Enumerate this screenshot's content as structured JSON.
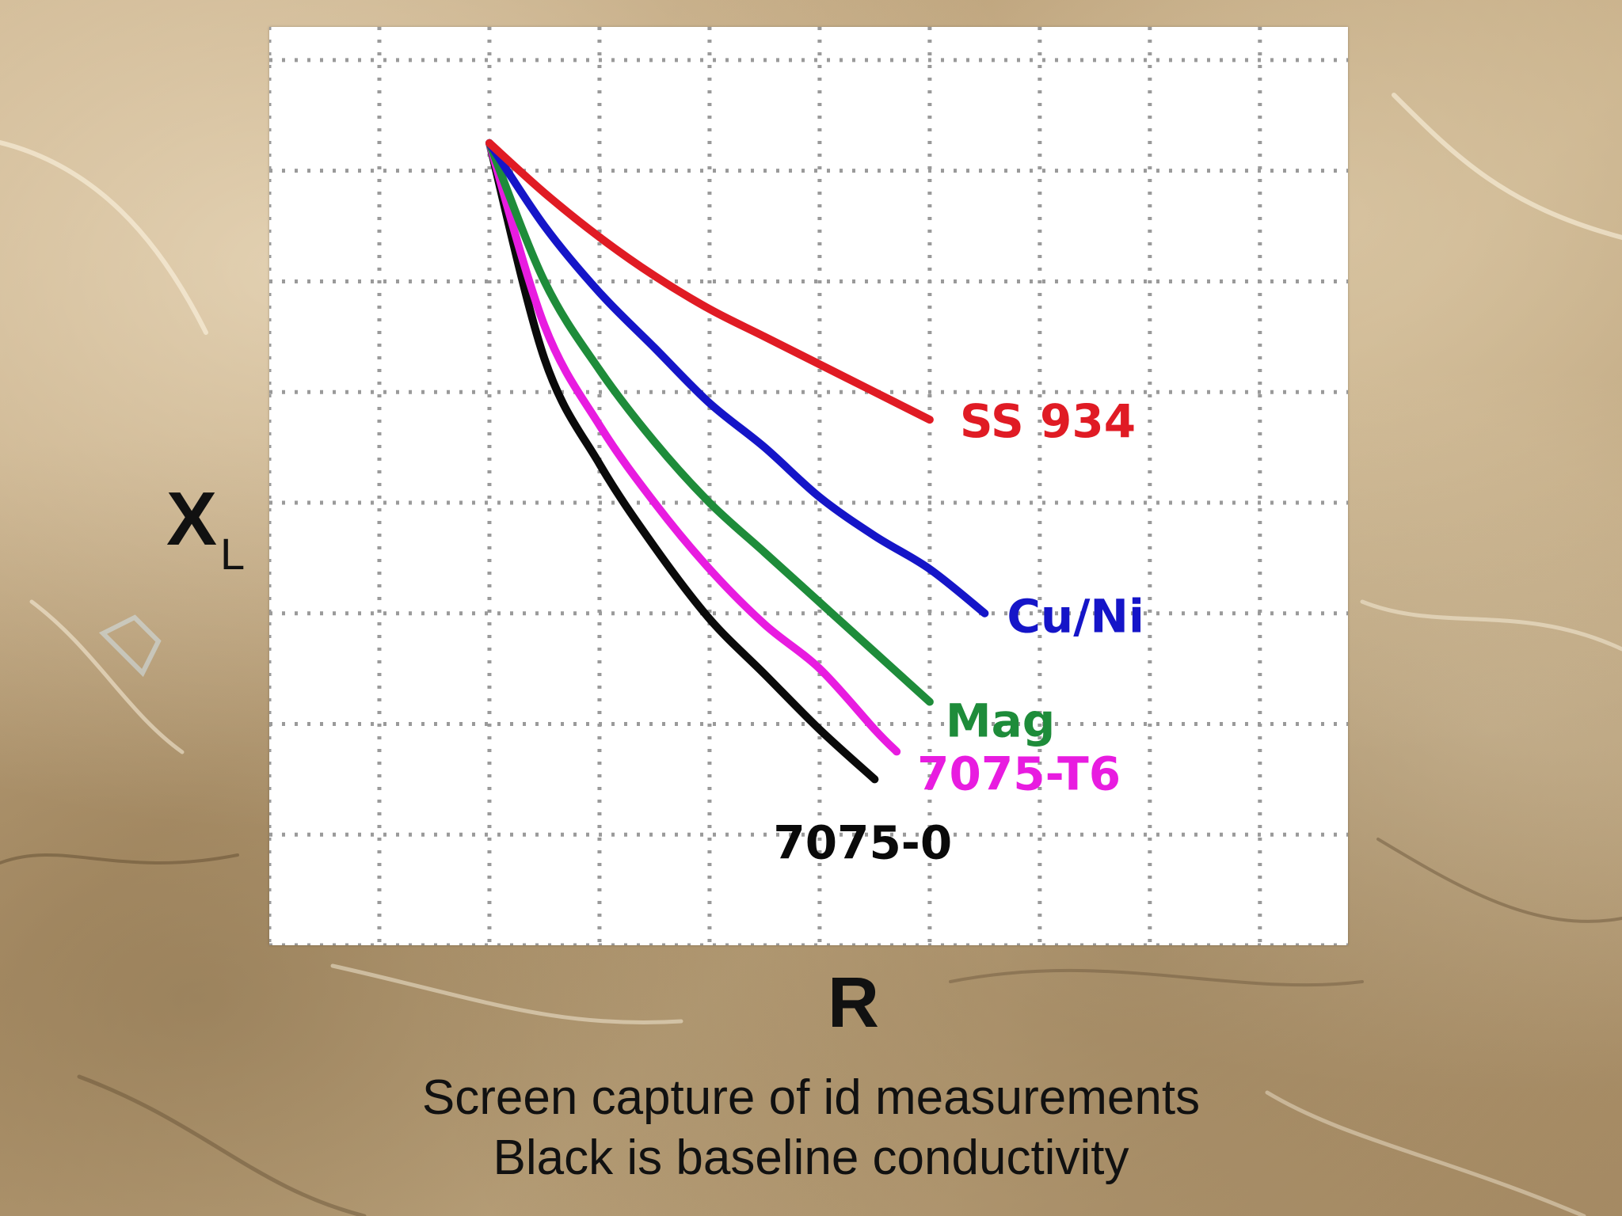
{
  "chart_data": {
    "type": "line",
    "xlabel": "R",
    "ylabel": "X",
    "ylabel_subscript": "L",
    "grid": true,
    "ticks_labeled": false,
    "xlim": [
      -2,
      7.8
    ],
    "ylim": [
      -1,
      7.3
    ],
    "series": [
      {
        "name": "SS 934",
        "color": "#e01b24",
        "x": [
          0,
          0.5,
          1,
          1.5,
          2,
          2.5,
          3,
          3.5,
          4.0
        ],
        "y": [
          6.25,
          5.8,
          5.4,
          5.05,
          4.75,
          4.5,
          4.25,
          4.0,
          3.75
        ]
      },
      {
        "name": "Cu/Ni",
        "color": "#1515c8",
        "x": [
          0,
          0.5,
          1,
          1.5,
          2,
          2.5,
          3,
          3.5,
          4.0,
          4.5
        ],
        "y": [
          6.25,
          5.5,
          4.9,
          4.4,
          3.9,
          3.5,
          3.05,
          2.7,
          2.4,
          2.0
        ]
      },
      {
        "name": "Mag",
        "color": "#1e8c3a",
        "x": [
          0,
          0.5,
          1,
          1.5,
          2,
          2.5,
          3,
          3.5,
          4.0
        ],
        "y": [
          6.25,
          5.0,
          4.2,
          3.55,
          3.0,
          2.55,
          2.1,
          1.65,
          1.2
        ]
      },
      {
        "name": "7075-T6",
        "color": "#e81ce0",
        "x": [
          0,
          0.5,
          1,
          1.5,
          2,
          2.5,
          3,
          3.5,
          3.7
        ],
        "y": [
          6.25,
          4.6,
          3.7,
          3.0,
          2.4,
          1.9,
          1.5,
          0.95,
          0.75
        ]
      },
      {
        "name": "7075-0",
        "color": "#0a0a0a",
        "x": [
          0,
          0.5,
          1,
          1.5,
          2,
          2.5,
          3,
          3.5
        ],
        "y": [
          6.25,
          4.3,
          3.35,
          2.6,
          1.95,
          1.45,
          0.95,
          0.5
        ]
      }
    ]
  },
  "caption": {
    "line1": "Screen capture of id measurements",
    "line2": "Black is baseline conductivity"
  },
  "colors": {
    "panel_background": "#ffffff",
    "grid_dots": "#9a9a9a",
    "text": "#111111"
  }
}
